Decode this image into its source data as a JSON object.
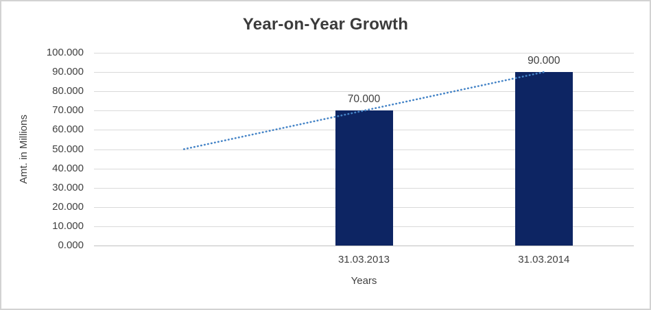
{
  "window": {
    "background": "#ffffff",
    "border_color": "#d2d2d2"
  },
  "chart_data": {
    "type": "bar",
    "title": "Year-on-Year Growth",
    "xlabel": "Years",
    "ylabel": "Amt. in Millions",
    "ylim": [
      0,
      100
    ],
    "ytick_labels": [
      "0.000",
      "10.000",
      "20.000",
      "30.000",
      "40.000",
      "50.000",
      "60.000",
      "70.000",
      "80.000",
      "90.000",
      "100.000"
    ],
    "categories": [
      "",
      "31.03.2013",
      "31.03.2014"
    ],
    "series": [
      {
        "name": "amount-bars",
        "type": "bar",
        "values": [
          null,
          70,
          90
        ],
        "data_labels": [
          "",
          "70.000",
          "90.000"
        ],
        "color": "#0d2563"
      },
      {
        "name": "trendline",
        "type": "line",
        "line_style": "dotted",
        "values": [
          50,
          70,
          90
        ],
        "color": "#4584c7"
      }
    ],
    "grid": true,
    "legend": "none",
    "colors": {
      "gridline": "#d9d9d9",
      "axis_line": "#bfbfbf",
      "text": "#404040"
    }
  }
}
